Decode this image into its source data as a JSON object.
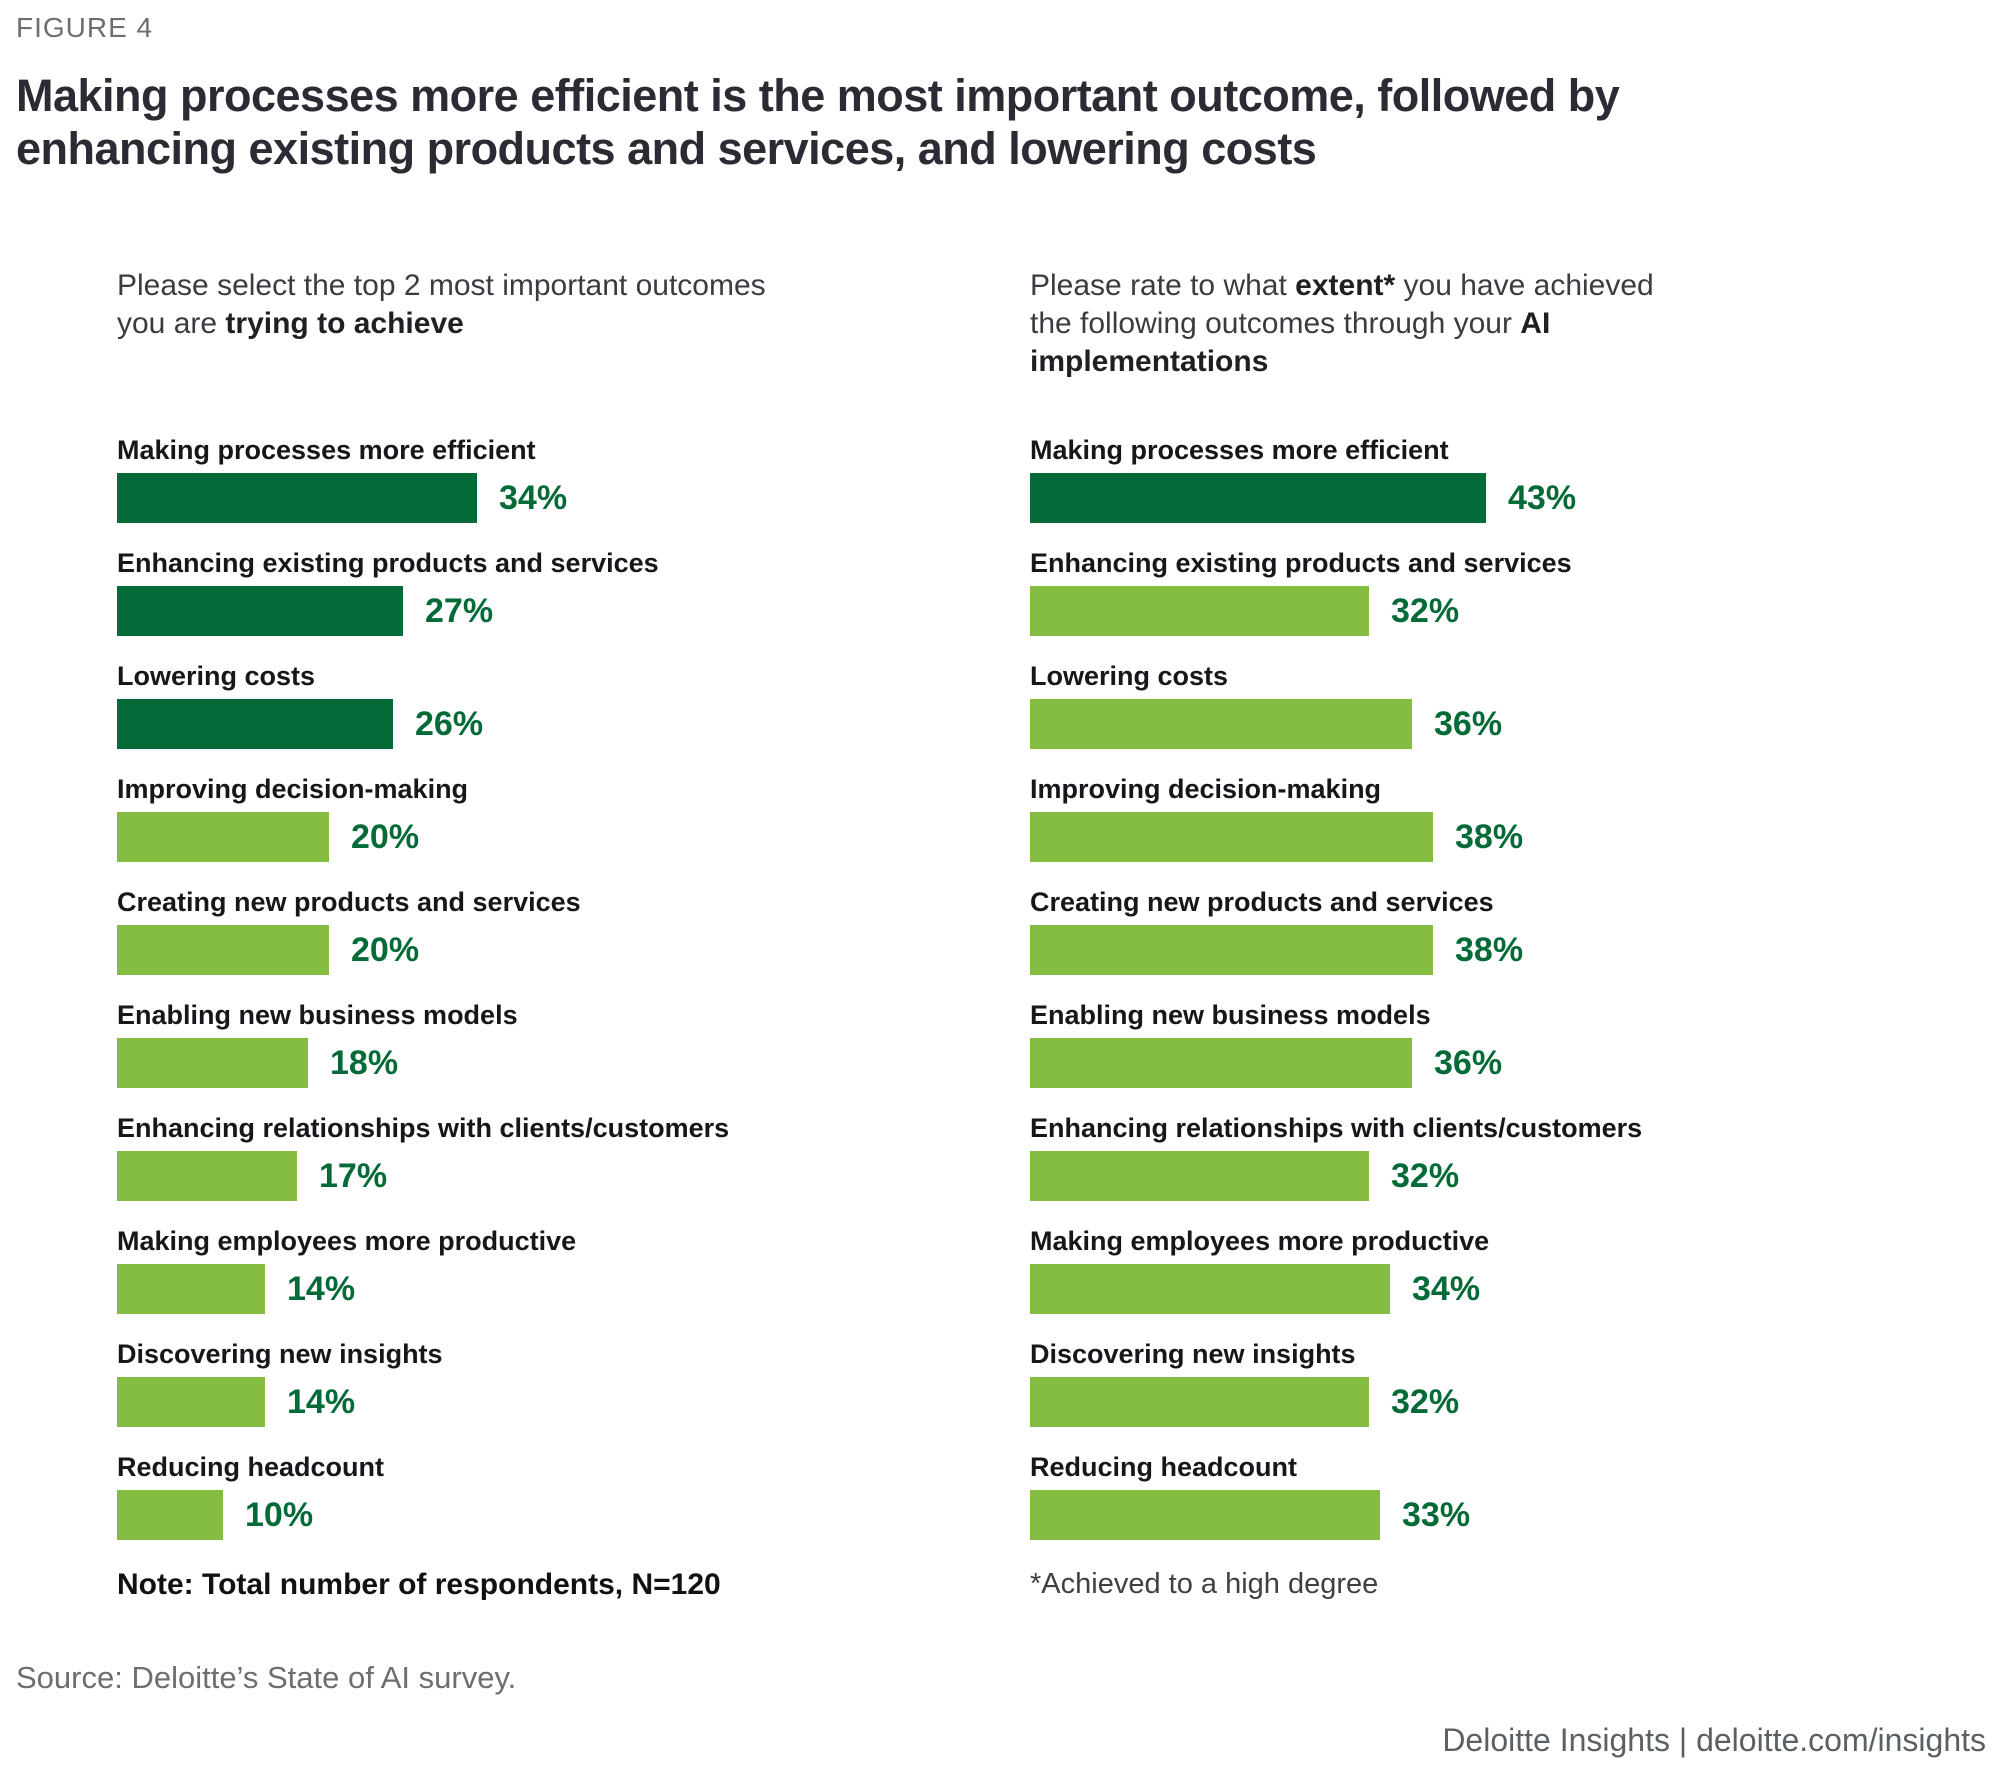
{
  "figure_label": "FIGURE 4",
  "title": "Making processes more efficient is the most important outcome, followed by enhancing existing products and services, and lowering costs",
  "colors": {
    "dark_green": "#046A38",
    "light_green": "#84BD41",
    "value_text": "#046A38",
    "title_text": "#2b2b33",
    "gray_text": "#6d6e71"
  },
  "questions": {
    "left": [
      {
        "t": "Please select the top 2 most important outcomes you are ",
        "b": false
      },
      {
        "t": "trying to achieve",
        "b": true
      }
    ],
    "right": [
      {
        "t": "Please rate to what ",
        "b": false
      },
      {
        "t": "extent*",
        "b": true
      },
      {
        "t": " you have achieved the following outcomes through your ",
        "b": false
      },
      {
        "t": "AI implementations",
        "b": true
      }
    ]
  },
  "chart_data": [
    {
      "type": "bar",
      "orientation": "horizontal",
      "title": "Please select the top 2 most important outcomes you are trying to achieve",
      "categories": [
        "Making processes more efficient",
        "Enhancing existing products and services",
        "Lowering costs",
        "Improving decision-making",
        "Creating new products and services",
        "Enabling new business models",
        "Enhancing relationships with clients/customers",
        "Making employees more productive",
        "Discovering new insights",
        "Reducing headcount"
      ],
      "values": [
        34,
        27,
        26,
        20,
        20,
        18,
        17,
        14,
        14,
        10
      ],
      "unit": "%",
      "xlim": [
        0,
        50
      ],
      "grid": false,
      "data_labels": "outside-end",
      "highlight_indices": [
        0,
        1,
        2
      ],
      "highlight_color": "#046A38",
      "base_color": "#84BD41"
    },
    {
      "type": "bar",
      "orientation": "horizontal",
      "title": "Please rate to what extent* you have achieved the following outcomes through your AI implementations",
      "categories": [
        "Making processes more efficient",
        "Enhancing existing products and services",
        "Lowering costs",
        "Improving decision-making",
        "Creating new products and services",
        "Enabling new business models",
        "Enhancing relationships with clients/customers",
        "Making employees more productive",
        "Discovering new insights",
        "Reducing headcount"
      ],
      "values": [
        43,
        32,
        36,
        38,
        38,
        36,
        32,
        34,
        32,
        33
      ],
      "unit": "%",
      "xlim": [
        0,
        50
      ],
      "grid": false,
      "data_labels": "outside-end",
      "highlight_indices": [
        0
      ],
      "highlight_color": "#046A38",
      "base_color": "#84BD41"
    }
  ],
  "notes": {
    "left": "Note: Total number of respondents, N=120",
    "right": "*Achieved to a high degree"
  },
  "footer": {
    "source": "Source: Deloitte’s State of AI survey.",
    "brand": "Deloitte Insights | deloitte.com/insights"
  }
}
